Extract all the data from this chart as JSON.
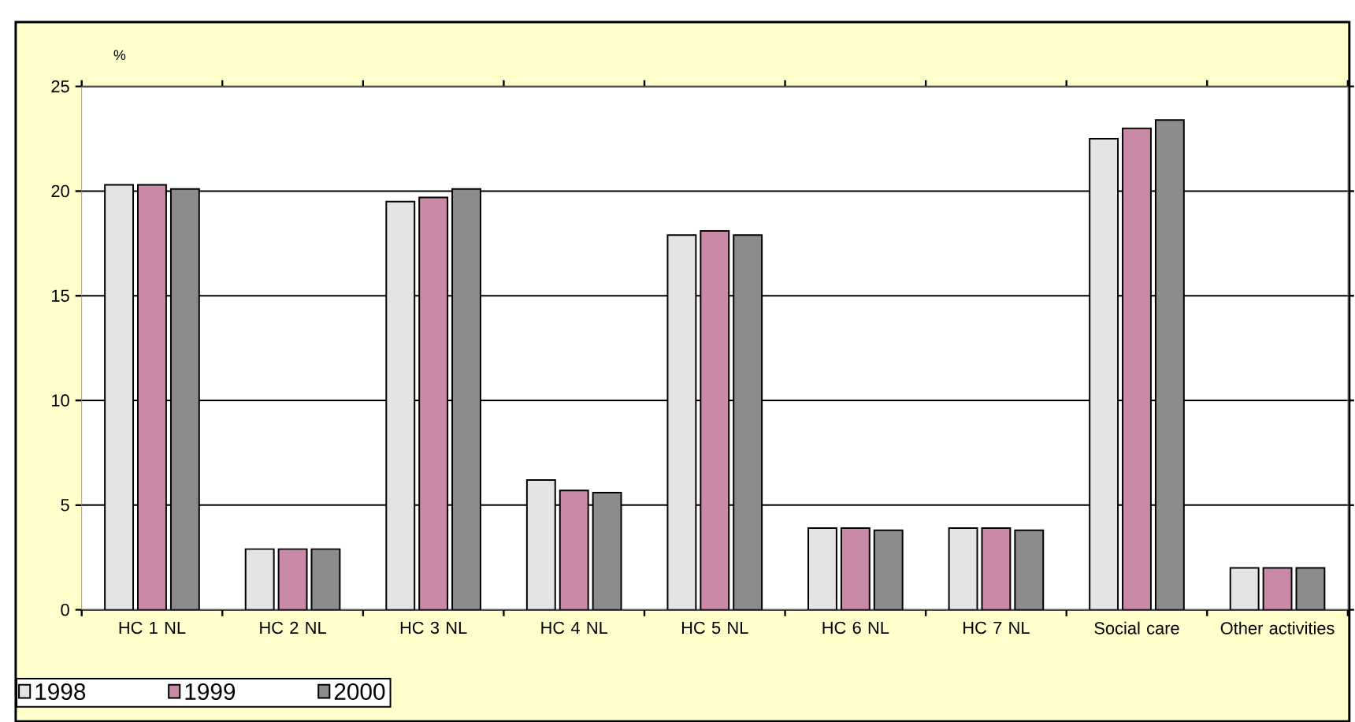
{
  "chart_data": {
    "type": "bar",
    "ylabel": "%",
    "categories": [
      "HC 1 NL",
      "HC 2 NL",
      "HC 3 NL",
      "HC 4 NL",
      "HC 5 NL",
      "HC 6 NL",
      "HC 7 NL",
      "Social care",
      "Other activities"
    ],
    "series": [
      {
        "name": "1998",
        "color": "#e4e4e4",
        "values": [
          20.3,
          2.9,
          19.5,
          6.2,
          17.9,
          3.9,
          3.9,
          22.5,
          2.0
        ]
      },
      {
        "name": "1999",
        "color": "#c98aa8",
        "values": [
          20.3,
          2.9,
          19.7,
          5.7,
          18.1,
          3.9,
          3.9,
          23.0,
          2.0
        ]
      },
      {
        "name": "2000",
        "color": "#8c8c8c",
        "values": [
          20.1,
          2.9,
          20.1,
          5.6,
          17.9,
          3.8,
          3.8,
          23.4,
          2.0
        ]
      }
    ],
    "ylim": [
      0,
      25
    ],
    "yticks": [
      0,
      5,
      10,
      15,
      20,
      25
    ],
    "grid": "y",
    "legend": "bottom left"
  }
}
